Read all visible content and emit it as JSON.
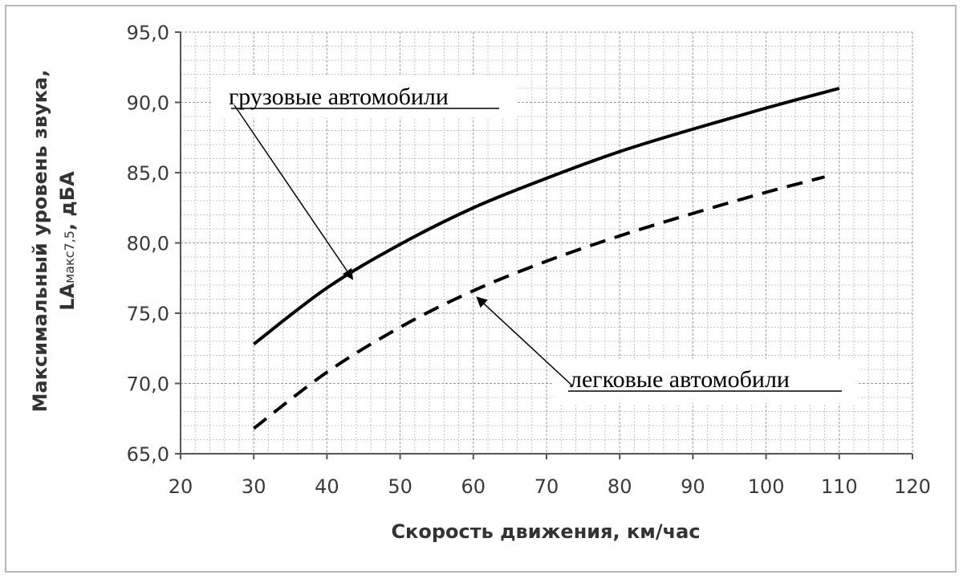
{
  "chart_data": {
    "type": "line",
    "xlabel": "Скорость движения, км/час",
    "ylabel_line1": "Максимальный уровень звука,",
    "ylabel_line2_main": "LА",
    "ylabel_line2_sub": "макс7,5",
    "ylabel_line2_end": ", дБА",
    "xlim": [
      20,
      120
    ],
    "ylim": [
      65,
      95
    ],
    "x_ticks": [
      "20",
      "30",
      "40",
      "50",
      "60",
      "70",
      "80",
      "90",
      "100",
      "110",
      "120"
    ],
    "y_ticks": [
      "65,0",
      "70,0",
      "75,0",
      "80,0",
      "85,0",
      "90,0",
      "95,0"
    ],
    "grid": true,
    "series": [
      {
        "name": "грузовые автомобили",
        "style": "solid",
        "color": "#000000",
        "x": [
          30,
          40,
          50,
          60,
          70,
          80,
          90,
          100,
          110
        ],
        "y": [
          72.8,
          76.8,
          79.9,
          82.5,
          84.6,
          86.5,
          88.1,
          89.6,
          91.0
        ]
      },
      {
        "name": "легковые автомобили",
        "style": "dashed",
        "color": "#000000",
        "x": [
          30,
          40,
          50,
          60,
          70,
          80,
          90,
          100,
          108
        ],
        "y": [
          66.8,
          70.8,
          74.0,
          76.6,
          78.7,
          80.5,
          82.1,
          83.6,
          84.7
        ]
      }
    ],
    "annotations": [
      {
        "text": "грузовые автомобили",
        "series": 0,
        "point_x": 43.5
      },
      {
        "text": "легковые автомобили",
        "series": 1,
        "point_x": 60.5
      }
    ]
  }
}
